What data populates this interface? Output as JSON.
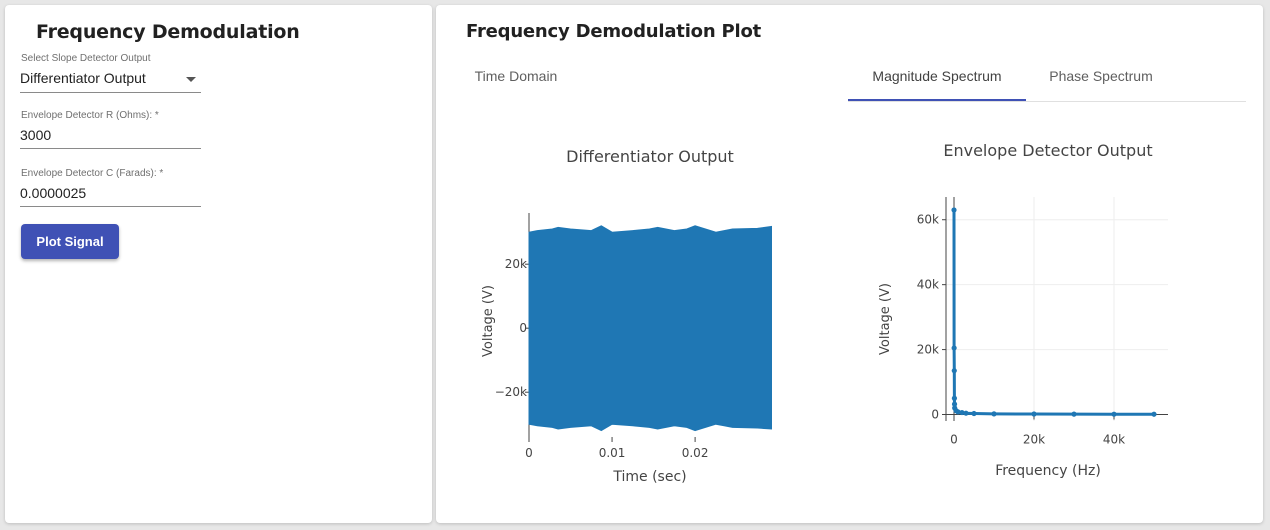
{
  "form": {
    "title": "Frequency Demodulation",
    "slope_select_label": "Select Slope Detector Output",
    "slope_select_value": "Differentiator Output",
    "r_label": "Envelope Detector R (Ohms): *",
    "r_value": "3000",
    "c_label": "Envelope Detector C (Farads): *",
    "c_value": "0.0000025",
    "plot_button": "Plot Signal"
  },
  "plot_panel": {
    "title": "Frequency Demodulation Plot",
    "tabs": [
      {
        "label": "Time Domain",
        "selected": false
      },
      {
        "label": "Magnitude Spectrum",
        "selected": true
      },
      {
        "label": "Phase Spectrum",
        "selected": false
      }
    ]
  },
  "colors": {
    "accent": "#3f51b5",
    "series": "#1f77b4"
  },
  "chart_data": [
    {
      "type": "area",
      "title": "Differentiator Output",
      "xlabel": "Time (sec)",
      "ylabel": "Voltage (V)",
      "x_ticks": [
        0,
        0.01,
        0.02
      ],
      "x_tick_labels": [
        "0",
        "0.01",
        "0.02"
      ],
      "y_ticks": [
        20000,
        0,
        -20000
      ],
      "y_tick_labels": [
        "20k",
        "0",
        "−20k"
      ],
      "xlim": [
        0,
        0.0295
      ],
      "ylim": [
        -34000,
        36000
      ],
      "series": [
        {
          "x": [
            0,
            0.001,
            0.0028,
            0.0035,
            0.005,
            0.0075,
            0.0087,
            0.01,
            0.0125,
            0.0145,
            0.0155,
            0.0175,
            0.019,
            0.02,
            0.0225,
            0.0235,
            0.0245,
            0.0275,
            0.0292
          ],
          "upper": [
            30000,
            30500,
            31000,
            31500,
            31000,
            30500,
            32000,
            30000,
            30500,
            31000,
            31500,
            30500,
            31000,
            32000,
            30000,
            30500,
            31000,
            31200,
            31800
          ],
          "lower": [
            -30000,
            -30500,
            -31000,
            -31500,
            -31000,
            -30500,
            -32000,
            -30000,
            -30500,
            -31000,
            -31500,
            -30500,
            -31000,
            -32000,
            -30000,
            -30500,
            -31000,
            -31200,
            -31500
          ]
        }
      ]
    },
    {
      "type": "line",
      "title": "Envelope Detector Output",
      "xlabel": "Frequency (Hz)",
      "ylabel": "Voltage (V)",
      "x_ticks": [
        0,
        20000,
        40000
      ],
      "x_tick_labels": [
        "0",
        "20k",
        "40k"
      ],
      "y_ticks": [
        0,
        20000,
        40000,
        60000
      ],
      "y_tick_labels": [
        "0",
        "20k",
        "40k",
        "60k"
      ],
      "xlim": [
        -2000,
        53500
      ],
      "ylim": [
        -2000,
        67000
      ],
      "grid": true,
      "series": [
        {
          "x": [
            0,
            34,
            68,
            102,
            136,
            170,
            500,
            1000,
            2000,
            3000,
            5000,
            10000,
            20000,
            30000,
            40000,
            50000
          ],
          "y": [
            63000,
            20500,
            13500,
            5000,
            3200,
            2000,
            1200,
            800,
            600,
            400,
            300,
            200,
            150,
            120,
            100,
            90
          ]
        }
      ]
    }
  ]
}
